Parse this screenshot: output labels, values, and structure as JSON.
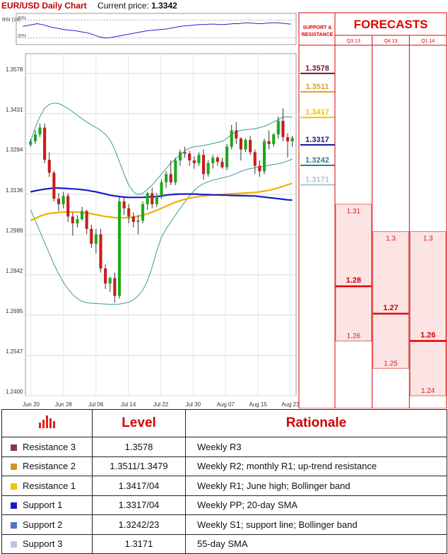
{
  "header": {
    "title": "EUR/USD Daily Chart",
    "price_label": "Current price:",
    "price_value": "1.3342"
  },
  "colors": {
    "red": "#e00000",
    "bull": "#1aaa1a",
    "bear": "#c81c1c",
    "sma20": "#1a1acc",
    "sma55": "#f0b000",
    "bband": "#3a9a9a"
  },
  "chart_data": [
    {
      "type": "candlestick",
      "title": "EUR/USD Daily Chart",
      "ylim": [
        1.24,
        1.365
      ],
      "y_ticks": [
        "1.3578",
        "1.3431",
        "1.3284",
        "1.3136",
        "1.2989",
        "1.2842",
        "1.2695",
        "1.2547",
        "1.2400"
      ],
      "x_ticks": [
        "Jun 20",
        "Jun 28",
        "Jul 06",
        "Jul 14",
        "Jul 22",
        "Jul 30",
        "Aug 07",
        "Aug 15",
        "Aug 23"
      ],
      "candles": [
        [
          1.3317,
          1.3338,
          1.331,
          1.333
        ],
        [
          1.333,
          1.337,
          1.332,
          1.3355
        ],
        [
          1.3355,
          1.3395,
          1.3345,
          1.338
        ],
        [
          1.338,
          1.3395,
          1.325,
          1.3262
        ],
        [
          1.3262,
          1.329,
          1.32,
          1.3215
        ],
        [
          1.3215,
          1.3222,
          1.311,
          1.312
        ],
        [
          1.312,
          1.314,
          1.3075,
          1.31
        ],
        [
          1.31,
          1.3145,
          1.3085,
          1.313
        ],
        [
          1.313,
          1.314,
          1.3035,
          1.3055
        ],
        [
          1.3055,
          1.307,
          1.2985,
          1.303
        ],
        [
          1.303,
          1.306,
          1.3015,
          1.3045
        ],
        [
          1.3045,
          1.309,
          1.304,
          1.3075
        ],
        [
          1.3075,
          1.308,
          1.299,
          1.301
        ],
        [
          1.301,
          1.3025,
          1.294,
          1.2955
        ],
        [
          1.2955,
          1.301,
          1.292,
          1.299
        ],
        [
          1.299,
          1.301,
          1.285,
          1.2865
        ],
        [
          1.2865,
          1.288,
          1.279,
          1.281
        ],
        [
          1.281,
          1.2835,
          1.278,
          1.283
        ],
        [
          1.283,
          1.285,
          1.274,
          1.2765
        ],
        [
          1.2765,
          1.313,
          1.2755,
          1.311
        ],
        [
          1.311,
          1.3125,
          1.306,
          1.3085
        ],
        [
          1.3085,
          1.31,
          1.303,
          1.3055
        ],
        [
          1.3055,
          1.307,
          1.3015,
          1.3035
        ],
        [
          1.3035,
          1.306,
          1.299,
          1.304
        ],
        [
          1.304,
          1.311,
          1.303,
          1.31
        ],
        [
          1.31,
          1.3145,
          1.308,
          1.314
        ],
        [
          1.314,
          1.316,
          1.3085,
          1.31
        ],
        [
          1.31,
          1.314,
          1.309,
          1.313
        ],
        [
          1.313,
          1.319,
          1.312,
          1.318
        ],
        [
          1.318,
          1.322,
          1.316,
          1.321
        ],
        [
          1.321,
          1.326,
          1.317,
          1.318
        ],
        [
          1.318,
          1.327,
          1.317,
          1.326
        ],
        [
          1.326,
          1.33,
          1.324,
          1.329
        ],
        [
          1.329,
          1.331,
          1.327,
          1.3285
        ],
        [
          1.3285,
          1.3295,
          1.324,
          1.326
        ],
        [
          1.326,
          1.3275,
          1.323,
          1.325
        ],
        [
          1.325,
          1.329,
          1.324,
          1.328
        ],
        [
          1.328,
          1.33,
          1.319,
          1.321
        ],
        [
          1.321,
          1.326,
          1.32,
          1.325
        ],
        [
          1.325,
          1.328,
          1.323,
          1.327
        ],
        [
          1.327,
          1.3275,
          1.324,
          1.3255
        ],
        [
          1.3255,
          1.327,
          1.323,
          1.3235
        ],
        [
          1.3235,
          1.332,
          1.3225,
          1.331
        ],
        [
          1.331,
          1.339,
          1.33,
          1.337
        ],
        [
          1.337,
          1.34,
          1.332,
          1.334
        ],
        [
          1.334,
          1.3345,
          1.326,
          1.33
        ],
        [
          1.33,
          1.334,
          1.329,
          1.3335
        ],
        [
          1.3335,
          1.335,
          1.328,
          1.329
        ],
        [
          1.329,
          1.33,
          1.321,
          1.324
        ],
        [
          1.324,
          1.326,
          1.32,
          1.322
        ],
        [
          1.322,
          1.334,
          1.321,
          1.333
        ],
        [
          1.333,
          1.337,
          1.33,
          1.332
        ],
        [
          1.332,
          1.336,
          1.331,
          1.3355
        ],
        [
          1.3355,
          1.342,
          1.334,
          1.3405
        ],
        [
          1.3405,
          1.345,
          1.333,
          1.3345
        ],
        [
          1.3345,
          1.336,
          1.327,
          1.333
        ],
        [
          1.333,
          1.335,
          1.331,
          1.3342
        ]
      ],
      "sma20": [
        1.3145,
        1.3149,
        1.3152,
        1.3155,
        1.3157,
        1.3159,
        1.3159,
        1.3158,
        1.3157,
        1.3156,
        1.3155,
        1.3153,
        1.3151,
        1.3148,
        1.3145,
        1.3141,
        1.3137,
        1.3133,
        1.313,
        1.3128,
        1.3126,
        1.3125,
        1.3125,
        1.3125,
        1.3125,
        1.3126,
        1.3127,
        1.3128,
        1.313,
        1.3133,
        1.3135,
        1.3136,
        1.3137,
        1.3137,
        1.3137,
        1.3137,
        1.3136,
        1.3135,
        1.3135,
        1.3134,
        1.3134,
        1.3133,
        1.3133,
        1.3132,
        1.3132,
        1.3131,
        1.3131,
        1.313,
        1.313,
        1.3128,
        1.3126,
        1.3124,
        1.3122,
        1.312,
        1.3118,
        1.3116,
        1.3115
      ],
      "sma55": [
        1.304,
        1.3048,
        1.3056,
        1.3062,
        1.3066,
        1.3068,
        1.307,
        1.3071,
        1.3072,
        1.3072,
        1.3071,
        1.307,
        1.3068,
        1.3065,
        1.3062,
        1.3058,
        1.3055,
        1.3053,
        1.3051,
        1.305,
        1.305,
        1.3051,
        1.3053,
        1.3056,
        1.306,
        1.3065,
        1.3071,
        1.3078,
        1.3085,
        1.3093,
        1.31,
        1.3107,
        1.3113,
        1.3118,
        1.3122,
        1.3125,
        1.3128,
        1.313,
        1.3132,
        1.3134,
        1.3135,
        1.3136,
        1.3137,
        1.3138,
        1.3139,
        1.314,
        1.3141,
        1.3142,
        1.3143,
        1.3145,
        1.3148,
        1.3151,
        1.3155,
        1.316,
        1.3165,
        1.3171,
        1.3176
      ],
      "bb_upper": [
        1.333,
        1.338,
        1.342,
        1.345,
        1.3465,
        1.347,
        1.3468,
        1.346,
        1.345,
        1.3438,
        1.3425,
        1.3412,
        1.34,
        1.339,
        1.338,
        1.337,
        1.3355,
        1.3335,
        1.33,
        1.3255,
        1.321,
        1.317,
        1.3145,
        1.3135,
        1.314,
        1.3155,
        1.317,
        1.319,
        1.321,
        1.323,
        1.325,
        1.3265,
        1.328,
        1.3295,
        1.3305,
        1.331,
        1.3312,
        1.3315,
        1.3318,
        1.3322,
        1.3326,
        1.333,
        1.334,
        1.3355,
        1.3365,
        1.337,
        1.3372,
        1.3374,
        1.3376,
        1.338,
        1.3385,
        1.3392,
        1.34,
        1.341,
        1.3418,
        1.342,
        1.3418
      ],
      "bb_lower": [
        1.308,
        1.304,
        1.3,
        1.296,
        1.292,
        1.288,
        1.2845,
        1.2815,
        1.279,
        1.277,
        1.2755,
        1.2745,
        1.274,
        1.2738,
        1.2737,
        1.2736,
        1.2735,
        1.2734,
        1.2734,
        1.2735,
        1.2738,
        1.2742,
        1.275,
        1.2765,
        1.2785,
        1.282,
        1.287,
        1.293,
        1.298,
        1.301,
        1.3035,
        1.306,
        1.3085,
        1.3108,
        1.313,
        1.315,
        1.3165,
        1.3175,
        1.3182,
        1.3188,
        1.3192,
        1.3196,
        1.32,
        1.3205,
        1.3212,
        1.322,
        1.3226,
        1.323,
        1.3233,
        1.3236,
        1.3239,
        1.3242,
        1.3245,
        1.3248,
        1.3252,
        1.3258,
        1.3265
      ]
    },
    {
      "type": "line",
      "title": "RSI (14)",
      "ylim": [
        15,
        85
      ],
      "y_ticks": [
        "70%",
        "30%"
      ],
      "values": [
        56,
        58,
        60,
        62,
        60,
        57,
        54,
        52,
        50,
        48,
        47,
        46,
        44,
        42,
        40,
        36,
        32,
        30,
        30,
        32,
        34,
        36,
        38,
        40,
        42,
        44,
        46,
        47,
        48,
        49,
        50,
        52,
        54,
        56,
        57,
        58,
        59,
        60,
        60,
        61,
        61,
        60,
        60,
        61,
        62,
        62,
        63,
        64,
        63,
        62,
        62,
        63,
        64,
        64,
        63,
        62,
        61
      ]
    },
    {
      "type": "bar",
      "title": "FORECASTS",
      "categories": [
        "Q3 13",
        "Q4 13",
        "Q1 14"
      ],
      "ylim": [
        1.24,
        1.365
      ],
      "series": [
        {
          "range": [
            1.26,
            1.31
          ],
          "key": 1.28,
          "labels": [
            "1.31",
            "1.28",
            "1.26"
          ]
        },
        {
          "range": [
            1.25,
            1.3
          ],
          "key": 1.27,
          "labels": [
            "1.3",
            "1.27",
            "1.25"
          ]
        },
        {
          "range": [
            1.24,
            1.3
          ],
          "key": 1.26,
          "labels": [
            "1.3",
            "1.26",
            "1.24"
          ]
        }
      ]
    }
  ],
  "sr_panel": {
    "title_line1": "SUPPORT &",
    "title_line2": "RESISTANCE",
    "levels": [
      {
        "label": "1.3578",
        "value": 1.3578,
        "color": "#6b1a2e"
      },
      {
        "label": "1.3511",
        "value": 1.3511,
        "color": "#d4a32a"
      },
      {
        "label": "1.3417",
        "value": 1.3417,
        "color": "#f2c200"
      },
      {
        "label": "1.3317",
        "value": 1.3317,
        "color": "#1a1a8c"
      },
      {
        "label": "1.3242",
        "value": 1.3242,
        "color": "#2d7a99"
      },
      {
        "label": "1.3171",
        "value": 1.3171,
        "color": "#a8c4cc"
      }
    ]
  },
  "table": {
    "headers": {
      "level": "Level",
      "rationale": "Rationale"
    },
    "rows": [
      {
        "name": "Resistance 3",
        "level": "1.3578",
        "rationale": "Weekly R3",
        "color": "#8b3a3a"
      },
      {
        "name": "Resistance 2",
        "level": "1.3511/1.3479",
        "rationale": "Weekly R2; monthly R1; up-trend resistance",
        "color": "#c69a1e"
      },
      {
        "name": "Resistance 1",
        "level": "1.3417/04",
        "rationale": "Weekly R1; June high; Bollinger band",
        "color": "#f0c400"
      },
      {
        "name": "Support 1",
        "level": "1.3317/04",
        "rationale": "Weekly PP; 20-day SMA",
        "color": "#1818c8"
      },
      {
        "name": "Support 2",
        "level": "1.3242/23",
        "rationale": "Weekly S1; support line; Bollinger band",
        "color": "#4a7db5"
      },
      {
        "name": "Support 3",
        "level": "1.3171",
        "rationale": "55-day SMA",
        "color": "#b8c8e0"
      }
    ]
  }
}
